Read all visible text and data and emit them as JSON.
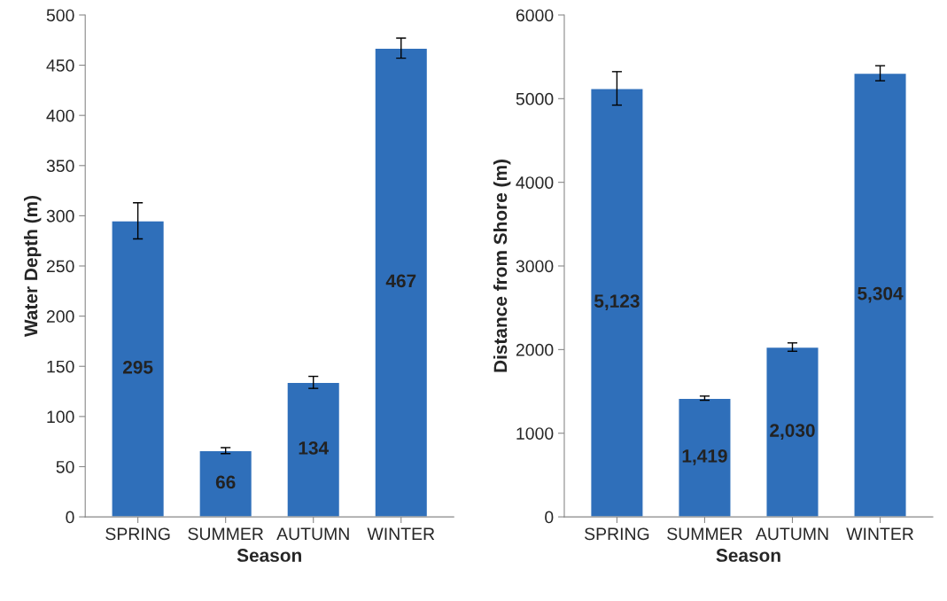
{
  "chart_data": [
    {
      "type": "bar",
      "xlabel": "Season",
      "ylabel": "Water Depth (m)",
      "categories": [
        "SPRING",
        "SUMMER",
        "AUTUMN",
        "WINTER"
      ],
      "values": [
        295,
        66,
        134,
        467
      ],
      "errors": [
        18,
        3,
        6,
        10
      ],
      "value_labels": [
        "295",
        "66",
        "134",
        "467"
      ],
      "color": "#2f6fba",
      "ylim": [
        0,
        500
      ],
      "yticks": [
        0,
        50,
        100,
        150,
        200,
        250,
        300,
        350,
        400,
        450,
        500
      ],
      "grid": false,
      "legend": false
    },
    {
      "type": "bar",
      "xlabel": "Season",
      "ylabel": "Distance from Shore (m)",
      "categories": [
        "SPRING",
        "SUMMER",
        "AUTUMN",
        "WINTER"
      ],
      "values": [
        5123,
        1419,
        2030,
        5304
      ],
      "errors": [
        200,
        25,
        50,
        90
      ],
      "value_labels": [
        "5,123",
        "1,419",
        "2,030",
        "5,304"
      ],
      "color": "#2f6fba",
      "ylim": [
        0,
        6000
      ],
      "yticks": [
        0,
        1000,
        2000,
        3000,
        4000,
        5000,
        6000
      ],
      "grid": false,
      "legend": false
    }
  ]
}
